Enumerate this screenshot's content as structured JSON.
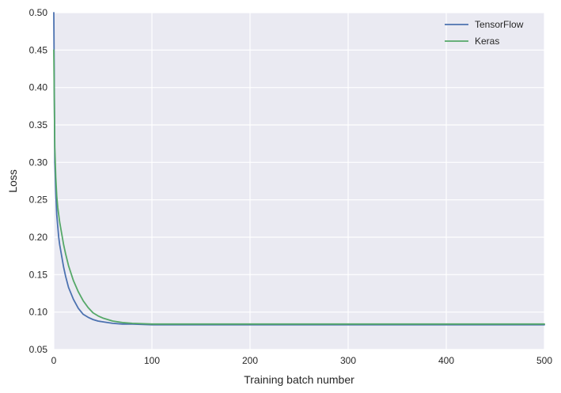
{
  "chart_data": {
    "type": "line",
    "title": "",
    "xlabel": "Training batch number",
    "ylabel": "Loss",
    "xlim": [
      0,
      500
    ],
    "ylim": [
      0.05,
      0.5
    ],
    "xticks": [
      "0",
      "100",
      "200",
      "300",
      "400",
      "500"
    ],
    "yticks": [
      "0.05",
      "0.10",
      "0.15",
      "0.20",
      "0.25",
      "0.30",
      "0.35",
      "0.40",
      "0.45",
      "0.50"
    ],
    "grid": true,
    "legend_position": "top-right",
    "series": [
      {
        "name": "TensorFlow",
        "color": "#4c72b0",
        "x": [
          0,
          1,
          2,
          3,
          4,
          5,
          6,
          8,
          10,
          12,
          15,
          20,
          25,
          30,
          35,
          40,
          45,
          50,
          60,
          70,
          80,
          100,
          150,
          200,
          250,
          300,
          350,
          400,
          450,
          500
        ],
        "y": [
          0.5,
          0.3,
          0.26,
          0.23,
          0.215,
          0.2,
          0.19,
          0.175,
          0.16,
          0.148,
          0.133,
          0.117,
          0.105,
          0.097,
          0.093,
          0.09,
          0.088,
          0.087,
          0.085,
          0.084,
          0.084,
          0.083,
          0.083,
          0.083,
          0.083,
          0.083,
          0.083,
          0.083,
          0.083,
          0.083
        ]
      },
      {
        "name": "Keras",
        "color": "#55a868",
        "x": [
          0,
          1,
          2,
          3,
          4,
          5,
          6,
          8,
          10,
          12,
          15,
          20,
          25,
          30,
          35,
          40,
          45,
          50,
          60,
          70,
          80,
          100,
          150,
          200,
          250,
          300,
          350,
          400,
          450,
          500
        ],
        "y": [
          0.45,
          0.32,
          0.28,
          0.255,
          0.24,
          0.23,
          0.22,
          0.205,
          0.19,
          0.178,
          0.162,
          0.142,
          0.127,
          0.115,
          0.106,
          0.099,
          0.095,
          0.092,
          0.088,
          0.086,
          0.085,
          0.084,
          0.084,
          0.084,
          0.084,
          0.084,
          0.084,
          0.084,
          0.084,
          0.084
        ]
      }
    ]
  }
}
